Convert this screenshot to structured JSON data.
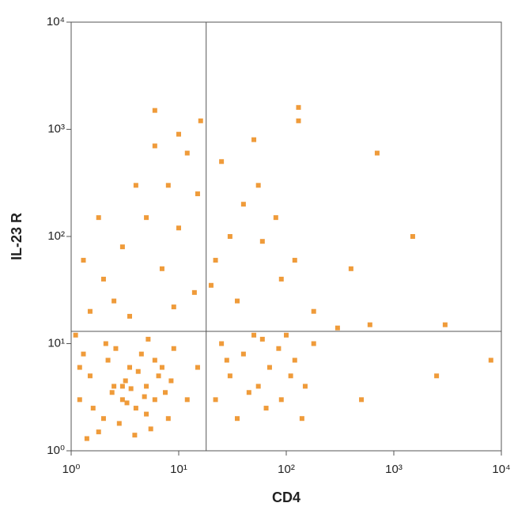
{
  "chart_data": {
    "type": "scatter",
    "x_label": "CD4",
    "y_label": "IL-23 R",
    "log_x": true,
    "log_y": true,
    "xlim": [
      1,
      10000
    ],
    "ylim": [
      1,
      10000
    ],
    "xticks": [
      {
        "value": 1,
        "label": "10⁰"
      },
      {
        "value": 10,
        "label": "10¹"
      },
      {
        "value": 100,
        "label": "10²"
      },
      {
        "value": 1000,
        "label": "10³"
      },
      {
        "value": 10000,
        "label": "10⁴"
      }
    ],
    "yticks": [
      {
        "value": 1,
        "label": "10⁰"
      },
      {
        "value": 10,
        "label": "10¹"
      },
      {
        "value": 100,
        "label": "10²"
      },
      {
        "value": 1000,
        "label": "10³"
      },
      {
        "value": 10000,
        "label": "10⁴"
      }
    ],
    "quadrant_lines": {
      "x": 18,
      "y": 13
    },
    "x": [
      1.2,
      1.5,
      2,
      2.5,
      3,
      3.5,
      4,
      5,
      6,
      7,
      8,
      1.3,
      1.8,
      2.2,
      2.8,
      3.2,
      4.5,
      5.5,
      6.5,
      9,
      1.1,
      1.6,
      2.4,
      3.6,
      4.2,
      5,
      7.5,
      1.4,
      2.1,
      3,
      3.3,
      4.8,
      6,
      8.5,
      12,
      15,
      1.2,
      2.6,
      3.9,
      5.2,
      22,
      30,
      40,
      55,
      70,
      90,
      120,
      150,
      180,
      25,
      35,
      50,
      65,
      85,
      110,
      140,
      28,
      45,
      60,
      100,
      1.5,
      2,
      3,
      5,
      8,
      12,
      16,
      25,
      40,
      60,
      90,
      1.3,
      2.5,
      4,
      7,
      10,
      14,
      22,
      35,
      55,
      80,
      120,
      180,
      1.8,
      3.5,
      6,
      9,
      15,
      20,
      30,
      50,
      6,
      10,
      130,
      300,
      700,
      600,
      2500,
      3000,
      8000,
      500,
      1500,
      400,
      130
    ],
    "series": [
      {
        "color": "#ef9b3a",
        "values": [
          3,
          5,
          2,
          4,
          3,
          6,
          2.5,
          4,
          3,
          6,
          2,
          8,
          1.5,
          7,
          1.8,
          4.5,
          8,
          1.6,
          5,
          9,
          12,
          2.5,
          3.5,
          3.8,
          5.5,
          2.2,
          3.5,
          1.3,
          10,
          4,
          2.8,
          3.2,
          7,
          4.5,
          3,
          6,
          6,
          9,
          1.4,
          11,
          3,
          5,
          8,
          4,
          6,
          3,
          7,
          4,
          10,
          10,
          2,
          12,
          2.5,
          9,
          5,
          2,
          7,
          3.5,
          11,
          12,
          20,
          40,
          80,
          150,
          300,
          600,
          1200,
          500,
          200,
          90,
          40,
          60,
          25,
          300,
          50,
          120,
          30,
          60,
          25,
          300,
          150,
          60,
          20,
          150,
          18,
          700,
          22,
          250,
          35,
          100,
          800,
          1500,
          900,
          1600,
          14,
          600,
          15,
          5,
          15,
          7,
          3,
          100,
          50,
          1200
        ]
      }
    ]
  }
}
